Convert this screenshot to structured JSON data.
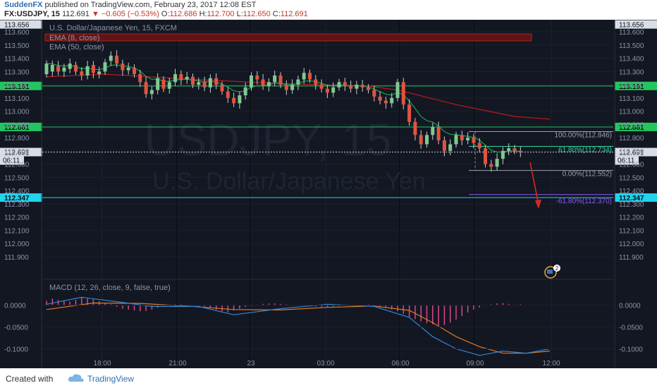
{
  "header": {
    "author": "SuddenFX",
    "published_text": "published on TradingView.com, February 23, 2017 12:08 EST",
    "symbol": "FX:USDJPY, 15",
    "last": "112.691",
    "change": "−0.605 (−0.53%)",
    "ohlc": {
      "o_label": "O:",
      "o": "112.686",
      "h_label": "H:",
      "h": "112.700",
      "l_label": "L:",
      "l": "112.650",
      "c_label": "C:",
      "c": "112.691"
    }
  },
  "footer": {
    "created_with": "Created with",
    "brand": "TradingView"
  },
  "chart_data": [
    {
      "type": "candlestick",
      "title": "U.S. Dollar/Japanese Yen, 15, FXCM",
      "watermark": {
        "symbol": "USDJPY, 15",
        "name": "U.S. Dollar/Japanese Yen"
      },
      "indicators": [
        "EMA (8, close)",
        "EMA (50, close)"
      ],
      "ylim": [
        111.75,
        113.67
      ],
      "y_ticks": [
        "113.600",
        "113.500",
        "113.400",
        "113.300",
        "113.200",
        "113.100",
        "113.000",
        "112.900",
        "112.800",
        "112.700",
        "112.600",
        "112.500",
        "112.400",
        "112.300",
        "112.200",
        "112.100",
        "112.000",
        "111.900"
      ],
      "x_ticks": [
        "18:00",
        "21:00",
        "23",
        "03:00",
        "06:00",
        "09:00",
        "12:00"
      ],
      "horizontal_lines": [
        {
          "value": 113.191,
          "label": "113.191",
          "color": "#22c55e"
        },
        {
          "value": 112.881,
          "label": "112.881",
          "color": "#22c55e"
        },
        {
          "value": 112.347,
          "label": "112.347",
          "color": "#22d3ee"
        }
      ],
      "price_labels": [
        {
          "value": 113.656,
          "label": "113.656"
        },
        {
          "value": 112.691,
          "label": "112.691",
          "sub": "06:11"
        }
      ],
      "fib_levels": [
        {
          "value": 112.846,
          "label": "100.00%(112.846)"
        },
        {
          "value": 112.734,
          "label": "61.80%(112.734)"
        },
        {
          "value": 112.552,
          "label": "0.00%(112.552)"
        },
        {
          "value": 112.37,
          "label": "-61.80%(112.370)"
        }
      ],
      "candles": [
        [
          113.28,
          113.36
        ],
        [
          113.3,
          113.35
        ],
        [
          113.34,
          113.3
        ],
        [
          113.3,
          113.33
        ],
        [
          113.32,
          113.36
        ],
        [
          113.35,
          113.3
        ],
        [
          113.3,
          113.27
        ],
        [
          113.27,
          113.34
        ],
        [
          113.35,
          113.29
        ],
        [
          113.28,
          113.3
        ],
        [
          113.3,
          113.37
        ],
        [
          113.38,
          113.42
        ],
        [
          113.42,
          113.36
        ],
        [
          113.36,
          113.31
        ],
        [
          113.31,
          113.33
        ],
        [
          113.33,
          113.28
        ],
        [
          113.28,
          113.22
        ],
        [
          113.22,
          113.13
        ],
        [
          113.13,
          113.16
        ],
        [
          113.16,
          113.25
        ],
        [
          113.24,
          113.17
        ],
        [
          113.17,
          113.22
        ],
        [
          113.22,
          113.28
        ],
        [
          113.28,
          113.24
        ],
        [
          113.24,
          113.26
        ],
        [
          113.26,
          113.2
        ],
        [
          113.2,
          113.22
        ],
        [
          113.22,
          113.18
        ],
        [
          113.18,
          113.25
        ],
        [
          113.25,
          113.2
        ],
        [
          113.2,
          113.15
        ],
        [
          113.15,
          113.1
        ],
        [
          113.1,
          113.06
        ],
        [
          113.06,
          113.12
        ],
        [
          113.12,
          113.18
        ],
        [
          113.18,
          113.27
        ],
        [
          113.27,
          113.24
        ],
        [
          113.24,
          113.19
        ],
        [
          113.19,
          113.22
        ],
        [
          113.22,
          113.27
        ],
        [
          113.27,
          113.2
        ],
        [
          113.2,
          113.16
        ],
        [
          113.16,
          113.2
        ],
        [
          113.2,
          113.24
        ],
        [
          113.24,
          113.29
        ],
        [
          113.29,
          113.24
        ],
        [
          113.24,
          113.2
        ],
        [
          113.2,
          113.17
        ],
        [
          113.17,
          113.14
        ],
        [
          113.14,
          113.18
        ],
        [
          113.18,
          113.22
        ],
        [
          113.22,
          113.19
        ],
        [
          113.19,
          113.17
        ],
        [
          113.17,
          113.2
        ],
        [
          113.2,
          113.18
        ],
        [
          113.18,
          113.16
        ],
        [
          113.16,
          113.11
        ],
        [
          113.11,
          113.08
        ],
        [
          113.08,
          113.06
        ],
        [
          113.06,
          113.1
        ],
        [
          113.1,
          113.22
        ],
        [
          113.22,
          113.05
        ],
        [
          113.05,
          112.92
        ],
        [
          112.92,
          112.82
        ],
        [
          112.82,
          112.75
        ],
        [
          112.75,
          112.82
        ],
        [
          112.82,
          112.88
        ],
        [
          112.88,
          112.78
        ],
        [
          112.78,
          112.7
        ],
        [
          112.7,
          112.75
        ],
        [
          112.75,
          112.82
        ],
        [
          112.82,
          112.78
        ],
        [
          112.78,
          112.8
        ],
        [
          112.8,
          112.76
        ],
        [
          112.76,
          112.72
        ],
        [
          112.72,
          112.6
        ],
        [
          112.6,
          112.58
        ],
        [
          112.58,
          112.64
        ],
        [
          112.64,
          112.7
        ],
        [
          112.7,
          112.72
        ],
        [
          112.72,
          112.7
        ],
        [
          112.7,
          112.69
        ]
      ],
      "ema50": [
        [
          0,
          113.26
        ],
        [
          10,
          113.28
        ],
        [
          25,
          113.24
        ],
        [
          40,
          113.21
        ],
        [
          55,
          113.19
        ],
        [
          60,
          113.16
        ],
        [
          70,
          113.05
        ],
        [
          80,
          112.96
        ],
        [
          86,
          112.94
        ]
      ],
      "annotation": "red arrow pointing down toward -61.80% level"
    },
    {
      "type": "macd",
      "title": "MACD (12, 26, close, 9, false, true)",
      "ylim": [
        -0.125,
        0.03
      ],
      "y_ticks": [
        "0.0000",
        "-0.0500",
        "-0.1000"
      ],
      "macd": [
        [
          0,
          0.002
        ],
        [
          6,
          0.018
        ],
        [
          12,
          0.008
        ],
        [
          18,
          -0.003
        ],
        [
          26,
          -0.003
        ],
        [
          32,
          -0.022
        ],
        [
          40,
          -0.008
        ],
        [
          48,
          0.002
        ],
        [
          56,
          -0.003
        ],
        [
          62,
          -0.028
        ],
        [
          66,
          -0.072
        ],
        [
          70,
          -0.1
        ],
        [
          74,
          -0.115
        ],
        [
          78,
          -0.105
        ],
        [
          82,
          -0.11
        ],
        [
          86,
          -0.1
        ]
      ],
      "signal": [
        [
          0,
          -0.01
        ],
        [
          8,
          0.005
        ],
        [
          16,
          0.004
        ],
        [
          24,
          -0.002
        ],
        [
          32,
          -0.01
        ],
        [
          40,
          -0.011
        ],
        [
          48,
          -0.005
        ],
        [
          56,
          -0.002
        ],
        [
          62,
          -0.012
        ],
        [
          66,
          -0.04
        ],
        [
          70,
          -0.072
        ],
        [
          74,
          -0.095
        ],
        [
          78,
          -0.11
        ],
        [
          82,
          -0.11
        ],
        [
          86,
          -0.105
        ]
      ],
      "histogram": [
        0.01,
        0.015,
        0.012,
        0.01,
        0.008,
        0.012,
        0.018,
        0.015,
        0.013,
        0.009,
        0.005,
        0.002,
        -0.004,
        -0.008,
        -0.01,
        -0.012,
        -0.014,
        -0.013,
        -0.01,
        -0.006,
        -0.002,
        0.001,
        0.002,
        0.002,
        0.001,
        0.0,
        -0.001,
        -0.003,
        -0.006,
        -0.01,
        -0.014,
        -0.016,
        -0.012,
        -0.008,
        -0.004,
        -0.002,
        0.001,
        0.003,
        0.004,
        0.004,
        0.003,
        0.002,
        0.001,
        0.0,
        -0.001,
        -0.002,
        -0.003,
        -0.004,
        -0.004,
        -0.003,
        -0.002,
        -0.001,
        -0.001,
        0.0,
        0.001,
        0.002,
        -0.001,
        -0.003,
        -0.006,
        -0.01,
        -0.014,
        -0.02,
        -0.027,
        -0.032,
        -0.037,
        -0.041,
        -0.044,
        -0.046,
        -0.045,
        -0.04,
        -0.033,
        -0.025,
        -0.017,
        -0.01,
        -0.005,
        -0.001,
        0.002,
        0.004,
        0.005,
        0.003,
        0.001,
        0.002
      ]
    }
  ]
}
